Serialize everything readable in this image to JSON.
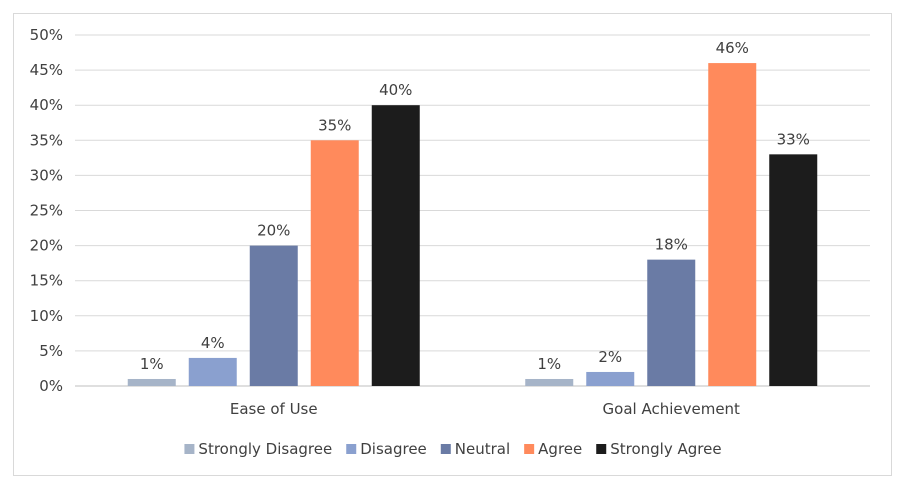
{
  "chart_data": {
    "type": "bar",
    "title": "",
    "xlabel": "",
    "ylabel": "",
    "ylim": [
      0,
      50
    ],
    "y_tick_step": 5,
    "y_tick_format": "percent",
    "grid": true,
    "legend_position": "bottom",
    "categories": [
      "Ease of Use",
      "Goal Achievement"
    ],
    "series": [
      {
        "name": "Strongly Disagree",
        "color": "#a6b4c8",
        "values": [
          1,
          1
        ]
      },
      {
        "name": "Disagree",
        "color": "#8aa0cf",
        "values": [
          4,
          2
        ]
      },
      {
        "name": "Neutral",
        "color": "#6a7ba5",
        "values": [
          20,
          18
        ]
      },
      {
        "name": "Agree",
        "color": "#ff8a5c",
        "values": [
          35,
          46
        ]
      },
      {
        "name": "Strongly Agree",
        "color": "#1c1c1c",
        "values": [
          40,
          33
        ]
      }
    ]
  }
}
